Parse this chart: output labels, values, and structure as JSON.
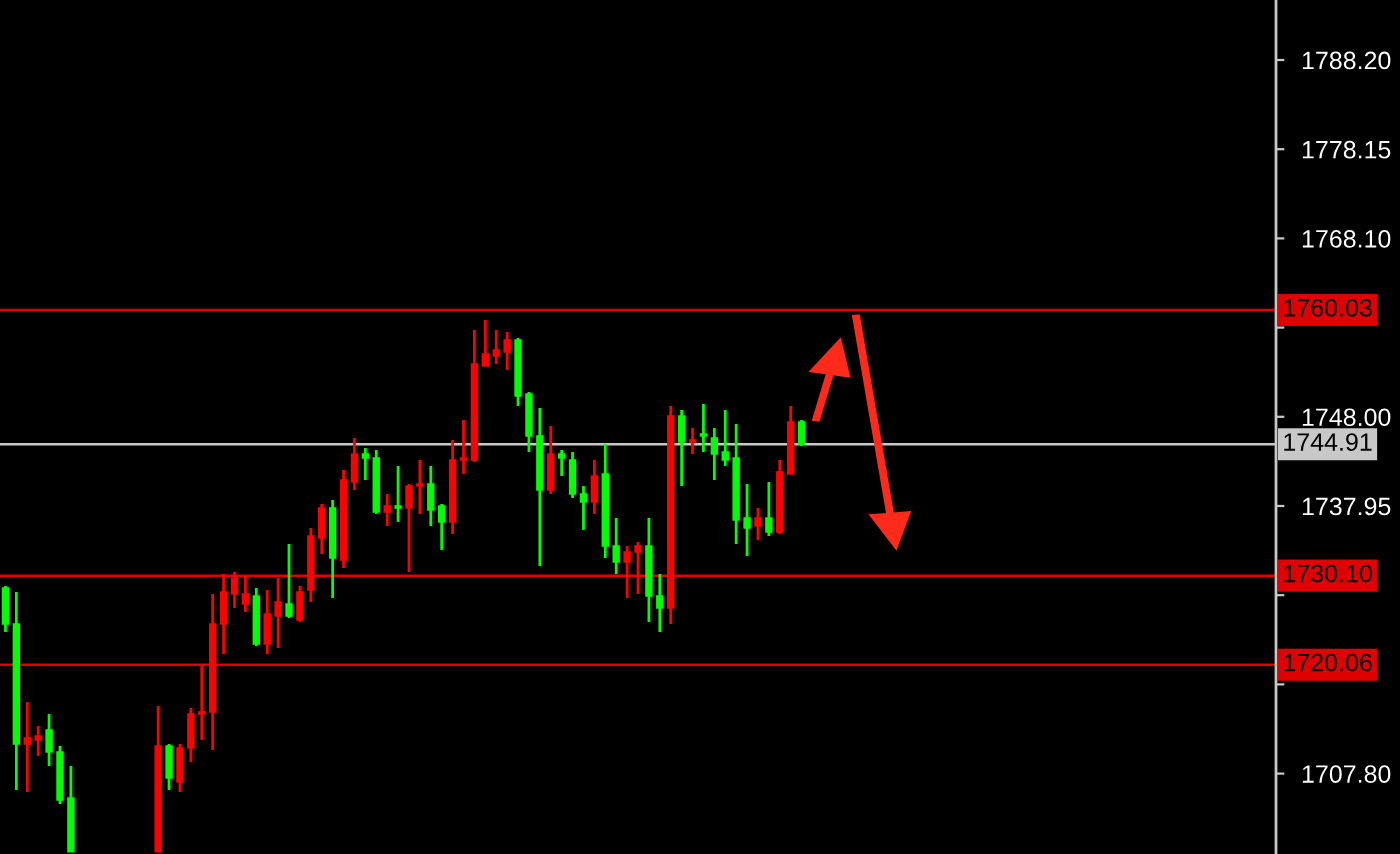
{
  "chart_data": {
    "type": "candlestick",
    "categories": [
      null,
      null,
      null,
      null,
      null,
      null,
      null,
      null,
      null,
      null,
      null,
      null,
      null,
      null,
      null,
      null,
      null,
      null,
      null,
      null,
      null,
      null,
      null,
      null,
      null,
      null,
      null,
      null,
      null,
      null,
      null,
      null,
      null,
      null,
      null,
      null,
      null,
      null,
      null,
      null,
      null,
      null,
      null,
      null,
      null,
      null,
      null,
      null,
      null,
      null,
      null,
      null,
      null,
      null,
      null,
      null,
      null,
      null,
      null,
      null,
      null,
      null,
      null,
      null,
      null,
      null,
      null,
      null,
      null,
      null,
      null,
      null,
      null,
      null,
      null,
      null,
      null,
      null,
      null,
      null,
      null,
      null,
      null,
      null,
      null,
      null,
      null,
      null,
      null,
      null,
      null,
      null,
      null,
      null,
      null,
      null,
      null,
      null,
      null,
      null,
      null,
      null,
      null,
      null,
      null,
      null,
      null,
      null,
      null,
      null,
      null,
      null,
      null,
      null,
      null,
      null,
      null
    ],
    "ohlc": [
      [
        1728.71,
        1728.94,
        1723.75,
        1724.65
      ],
      [
        1724.65,
        1728.26,
        1705.95,
        1711.13
      ],
      [
        1711.13,
        1715.86,
        1705.72,
        1711.81
      ],
      [
        1711.58,
        1713.16,
        1709.78,
        1712.03
      ],
      [
        1712.71,
        1714.51,
        1708.65,
        1710.23
      ],
      [
        1710.23,
        1710.91,
        1704.37,
        1704.82
      ],
      [
        1705.05,
        1708.65,
        1699.0,
        1699.0
      ],
      null,
      null,
      null,
      null,
      null,
      null,
      null,
      [
        1699.0,
        1715.41,
        1699.0,
        1710.91
      ],
      [
        1710.91,
        1711.13,
        1705.95,
        1707.3
      ],
      [
        1706.85,
        1711.13,
        1705.72,
        1710.68
      ],
      [
        1710.68,
        1715.19,
        1709.1,
        1714.51
      ],
      [
        1714.51,
        1719.92,
        1711.58,
        1714.74
      ],
      [
        1714.74,
        1728.03,
        1710.46,
        1724.65
      ],
      [
        1724.65,
        1730.29,
        1721.27,
        1728.26
      ],
      [
        1728.03,
        1730.51,
        1726.46,
        1729.84
      ],
      [
        1726.91,
        1730.06,
        1726.01,
        1728.03
      ],
      [
        1727.81,
        1728.71,
        1722.17,
        1722.4
      ],
      [
        1722.4,
        1728.49,
        1721.27,
        1725.78
      ],
      [
        1725.55,
        1729.84,
        1721.95,
        1727.13
      ],
      [
        1726.91,
        1733.67,
        1725.33,
        1725.55
      ],
      [
        1725.11,
        1728.94,
        1724.88,
        1728.26
      ],
      [
        1728.49,
        1735.47,
        1727.13,
        1734.57
      ],
      [
        1734.34,
        1738.18,
        1732.54,
        1737.73
      ],
      [
        1737.73,
        1738.63,
        1727.58,
        1732.09
      ],
      [
        1731.86,
        1742.01,
        1730.96,
        1740.88
      ],
      [
        1740.65,
        1745.61,
        1739.75,
        1743.81
      ],
      [
        1743.81,
        1744.48,
        1740.88,
        1743.36
      ],
      [
        1743.36,
        1744.26,
        1737.05,
        1737.27
      ],
      [
        1737.27,
        1739.3,
        1735.7,
        1737.95
      ],
      [
        1737.95,
        1742.46,
        1736.15,
        1737.73
      ],
      [
        1737.73,
        1740.43,
        1730.51,
        1740.2
      ],
      [
        1740.2,
        1743.13,
        1737.05,
        1740.43
      ],
      [
        1740.43,
        1742.46,
        1735.7,
        1737.5
      ],
      [
        1737.95,
        1738.18,
        1732.99,
        1736.15
      ],
      [
        1736.15,
        1745.39,
        1734.8,
        1743.13
      ],
      [
        1743.13,
        1747.64,
        1741.56,
        1743.36
      ],
      [
        1743.13,
        1757.78,
        1742.9,
        1753.95
      ],
      [
        1753.72,
        1758.91,
        1753.72,
        1755.07
      ],
      [
        1754.85,
        1757.78,
        1753.95,
        1755.53
      ],
      [
        1755.3,
        1757.55,
        1753.27,
        1756.65
      ],
      [
        1756.65,
        1756.88,
        1749.22,
        1750.34
      ],
      [
        1750.57,
        1750.79,
        1744.03,
        1745.84
      ],
      [
        1745.84,
        1748.99,
        1731.19,
        1739.75
      ],
      [
        1739.75,
        1746.96,
        1739.3,
        1743.81
      ],
      [
        1743.81,
        1744.26,
        1741.33,
        1743.36
      ],
      [
        1743.13,
        1744.03,
        1738.85,
        1739.3
      ],
      [
        1739.3,
        1740.2,
        1735.25,
        1738.4
      ],
      [
        1738.4,
        1743.13,
        1737.05,
        1741.33
      ],
      [
        1741.56,
        1744.93,
        1732.09,
        1733.44
      ],
      [
        1733.44,
        1736.6,
        1730.29,
        1731.64
      ],
      [
        1731.64,
        1733.44,
        1727.58,
        1732.77
      ],
      [
        1732.77,
        1733.89,
        1728.03,
        1733.44
      ],
      [
        1733.44,
        1736.6,
        1724.88,
        1727.81
      ],
      [
        1727.81,
        1730.29,
        1723.75,
        1726.46
      ],
      [
        1726.46,
        1749.22,
        1724.65,
        1748.09
      ],
      [
        1748.09,
        1748.77,
        1740.2,
        1745.16
      ],
      [
        1745.16,
        1746.74,
        1743.81,
        1745.39
      ],
      [
        1746.06,
        1749.44,
        1744.03,
        1745.84
      ],
      [
        1745.61,
        1746.74,
        1740.88,
        1743.81
      ],
      [
        1744.03,
        1748.77,
        1742.46,
        1743.13
      ],
      [
        1743.36,
        1747.19,
        1733.67,
        1736.37
      ],
      [
        1736.6,
        1740.43,
        1732.31,
        1735.47
      ],
      [
        1735.7,
        1737.73,
        1734.12,
        1736.6
      ],
      [
        1736.6,
        1740.65,
        1734.57,
        1735.02
      ],
      [
        1735.02,
        1743.13,
        1734.8,
        1741.78
      ],
      [
        1741.56,
        1749.22,
        1741.56,
        1747.41
      ],
      [
        1747.41,
        1747.64,
        1744.71,
        1744.91
      ],
      null,
      null,
      null,
      null,
      null,
      null,
      null,
      null,
      null,
      null,
      null,
      null,
      null,
      null,
      null,
      null,
      null,
      null,
      null,
      null,
      null,
      null,
      null,
      null,
      null,
      null,
      null,
      null,
      null,
      null,
      null,
      null,
      null,
      null,
      null,
      null,
      null,
      null,
      null,
      null,
      null,
      null,
      null
    ],
    "colors": [
      "#00ff00",
      "#00ff00",
      "#ff0000",
      "#ff0000",
      "#00ff00",
      "#00ff00",
      "#00ff00",
      null,
      null,
      null,
      null,
      null,
      null,
      null,
      "#ff0000",
      "#00ff00",
      "#ff0000",
      "#ff0000",
      "#ff0000",
      "#ff0000",
      "#ff0000",
      "#ff0000",
      "#ff0000",
      "#00ff00",
      "#ff0000",
      "#ff0000",
      "#00ff00",
      "#ff0000",
      "#ff0000",
      "#ff0000",
      "#00ff00",
      "#ff0000",
      "#ff0000",
      "#00ff00",
      "#00ff00",
      "#ff0000",
      "#00ff00",
      "#ff0000",
      "#ff0000",
      "#00ff00",
      "#00ff00",
      "#ff0000",
      "#ff0000",
      "#ff0000",
      "#ff0000",
      "#ff0000",
      "#ff0000",
      "#00ff00",
      "#00ff00",
      "#00ff00",
      "#ff0000",
      "#00ff00",
      "#00ff00",
      "#00ff00",
      "#ff0000",
      "#00ff00",
      "#00ff00",
      "#ff0000",
      "#ff0000",
      "#00ff00",
      "#00ff00",
      "#ff0000",
      "#00ff00",
      "#ff0000",
      "#00ff00",
      "#00ff00",
      "#00ff00",
      "#00ff00",
      "#00ff00",
      "#ff0000",
      "#00ff00",
      "#ff0000",
      "#ff0000",
      "#00ff00",
      null,
      null,
      null,
      null,
      null,
      null,
      null,
      null,
      null,
      null,
      null,
      null,
      null,
      null,
      null,
      null,
      null,
      null,
      null,
      null,
      null,
      null,
      null,
      null,
      null,
      null,
      null,
      null,
      null,
      null,
      null,
      null,
      null,
      null,
      null,
      null,
      null,
      null,
      null,
      null,
      null,
      null,
      null
    ],
    "ylim": [
      1698.74,
      1794.96
    ],
    "yticks": [
      {
        "value": 1707.8,
        "label": "1707.80"
      },
      {
        "value": 1717.85,
        "label": null
      },
      {
        "value": 1727.9,
        "label": null
      },
      {
        "value": 1737.95,
        "label": "1737.95"
      },
      {
        "value": 1748.0,
        "label": "1748.00"
      },
      {
        "value": 1758.05,
        "label": null
      },
      {
        "value": 1768.1,
        "label": "1768.10"
      },
      {
        "value": 1778.15,
        "label": "1778.15"
      },
      {
        "value": 1788.2,
        "label": "1788.20"
      }
    ],
    "ref_lines": [
      {
        "axis": "y",
        "value": 1760.03,
        "label": "1760.03",
        "color": "#e00000"
      },
      {
        "axis": "y",
        "value": 1744.91,
        "label": "1744.91",
        "color": "#c8c8c8"
      },
      {
        "axis": "y",
        "value": 1730.1,
        "label": "1730.10",
        "color": "#e00000"
      },
      {
        "axis": "y",
        "value": 1720.06,
        "label": "1720.06",
        "color": "#e00000"
      }
    ],
    "grid": false
  }
}
